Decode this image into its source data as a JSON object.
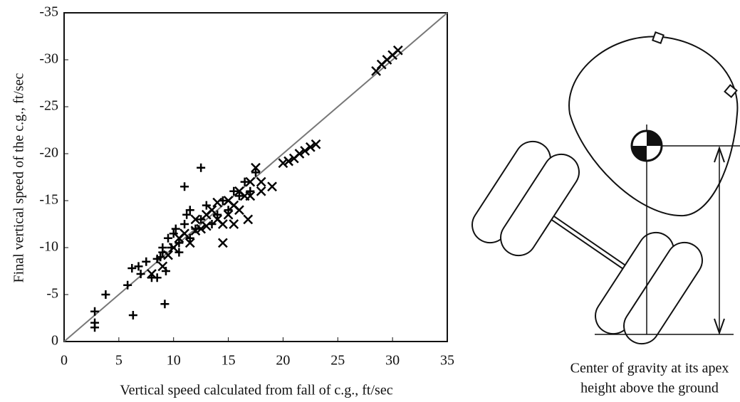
{
  "chart_data": {
    "type": "scatter",
    "xlabel": "Vertical speed calculated from fall of c.g., ft/sec",
    "ylabel": "Final vertical speed of the c.g., ft/sec",
    "xlim": [
      0,
      35
    ],
    "xticks": [
      0,
      5,
      10,
      15,
      20,
      25,
      30,
      35
    ],
    "ylim": [
      0,
      -35
    ],
    "yticks": [
      0,
      -5,
      -10,
      -15,
      -20,
      -25,
      -30,
      -35
    ],
    "reference_line": {
      "x": [
        0,
        35
      ],
      "y": [
        0,
        -35
      ],
      "color": "#777777"
    },
    "series": [
      {
        "marker": "plus",
        "color": "#000000",
        "x": [
          2.8,
          2.8,
          2.8,
          3.8,
          5.8,
          6.2,
          6.3,
          6.8,
          7,
          7.5,
          8,
          8.5,
          8.5,
          9,
          9.2,
          9.3,
          9.5,
          9.8,
          10,
          10.2,
          10.5,
          11,
          11,
          11.2,
          11.5,
          11.5,
          12,
          12.5,
          12.5,
          13,
          13.5,
          14,
          14.5,
          15,
          15.5,
          16,
          16.5,
          17,
          17.5,
          9,
          8.8,
          10.5
        ],
        "y": [
          -1.5,
          -2,
          -3.2,
          -5,
          -6,
          -7.8,
          -2.8,
          -8,
          -7.2,
          -8.5,
          -6.8,
          -6.8,
          -8.8,
          -9.5,
          -4,
          -7.5,
          -11,
          -10,
          -11.5,
          -12,
          -10.5,
          -12.5,
          -16.5,
          -13.5,
          -14,
          -11,
          -12,
          -13,
          -18.5,
          -14.5,
          -12.5,
          -13.5,
          -15,
          -14,
          -16,
          -15.5,
          -17,
          -16,
          -18,
          -10,
          -9,
          -9.5
        ]
      },
      {
        "marker": "cross",
        "color": "#000000",
        "x": [
          8,
          9,
          9.5,
          10,
          10.5,
          11,
          11.5,
          12,
          12,
          12.5,
          13,
          13,
          13.5,
          14,
          14,
          14.5,
          15,
          15,
          15.5,
          16,
          16,
          16.5,
          17,
          17,
          17.5,
          18,
          18,
          14.5,
          15.5,
          20,
          20.5,
          21,
          21.5,
          22,
          22.5,
          23,
          28.5,
          29,
          29.5,
          30,
          30.5,
          19,
          16.8
        ],
        "y": [
          -7.2,
          -8,
          -9.2,
          -10,
          -11,
          -11.5,
          -10.5,
          -11.8,
          -13,
          -12,
          -13.5,
          -12.3,
          -14,
          -13,
          -14.8,
          -12.5,
          -15,
          -13.5,
          -14.5,
          -16,
          -14,
          -15.5,
          -17,
          -15.5,
          -18.5,
          -17,
          -16,
          -10.5,
          -12.5,
          -19,
          -19.2,
          -19.5,
          -20,
          -20.3,
          -20.7,
          -21,
          -28.8,
          -29.5,
          -30,
          -30.5,
          -31,
          -16.5,
          -13
        ]
      }
    ]
  },
  "diagram": {
    "caption": [
      "Center of gravity at its apex",
      "height above the ground"
    ]
  }
}
